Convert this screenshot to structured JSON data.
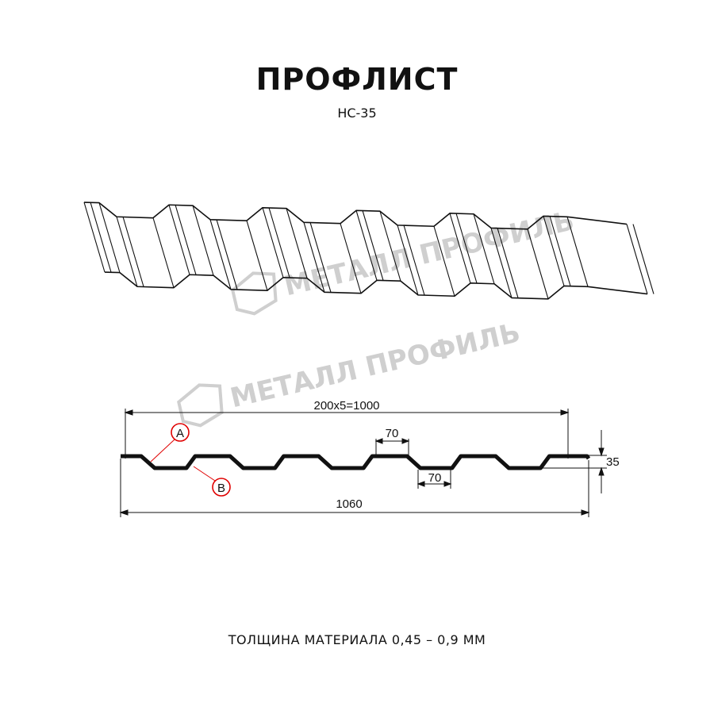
{
  "title": "ПРОФЛИСТ",
  "subtitle": "НС-35",
  "footer": "ТОЛЩИНА МАТЕРИАЛА 0,45 – 0,9 ММ",
  "watermark": "МЕТАЛЛ ПРОФИЛЬ",
  "dimensions": {
    "pitch_total": "200x5=1000",
    "crest_width": "70",
    "trough_width": "70",
    "height": "35",
    "total_width": "1060"
  },
  "markers": {
    "a": "A",
    "b": "B"
  },
  "colors": {
    "line": "#111111",
    "marker": "#e00000",
    "watermark": "#cfcfcf"
  }
}
